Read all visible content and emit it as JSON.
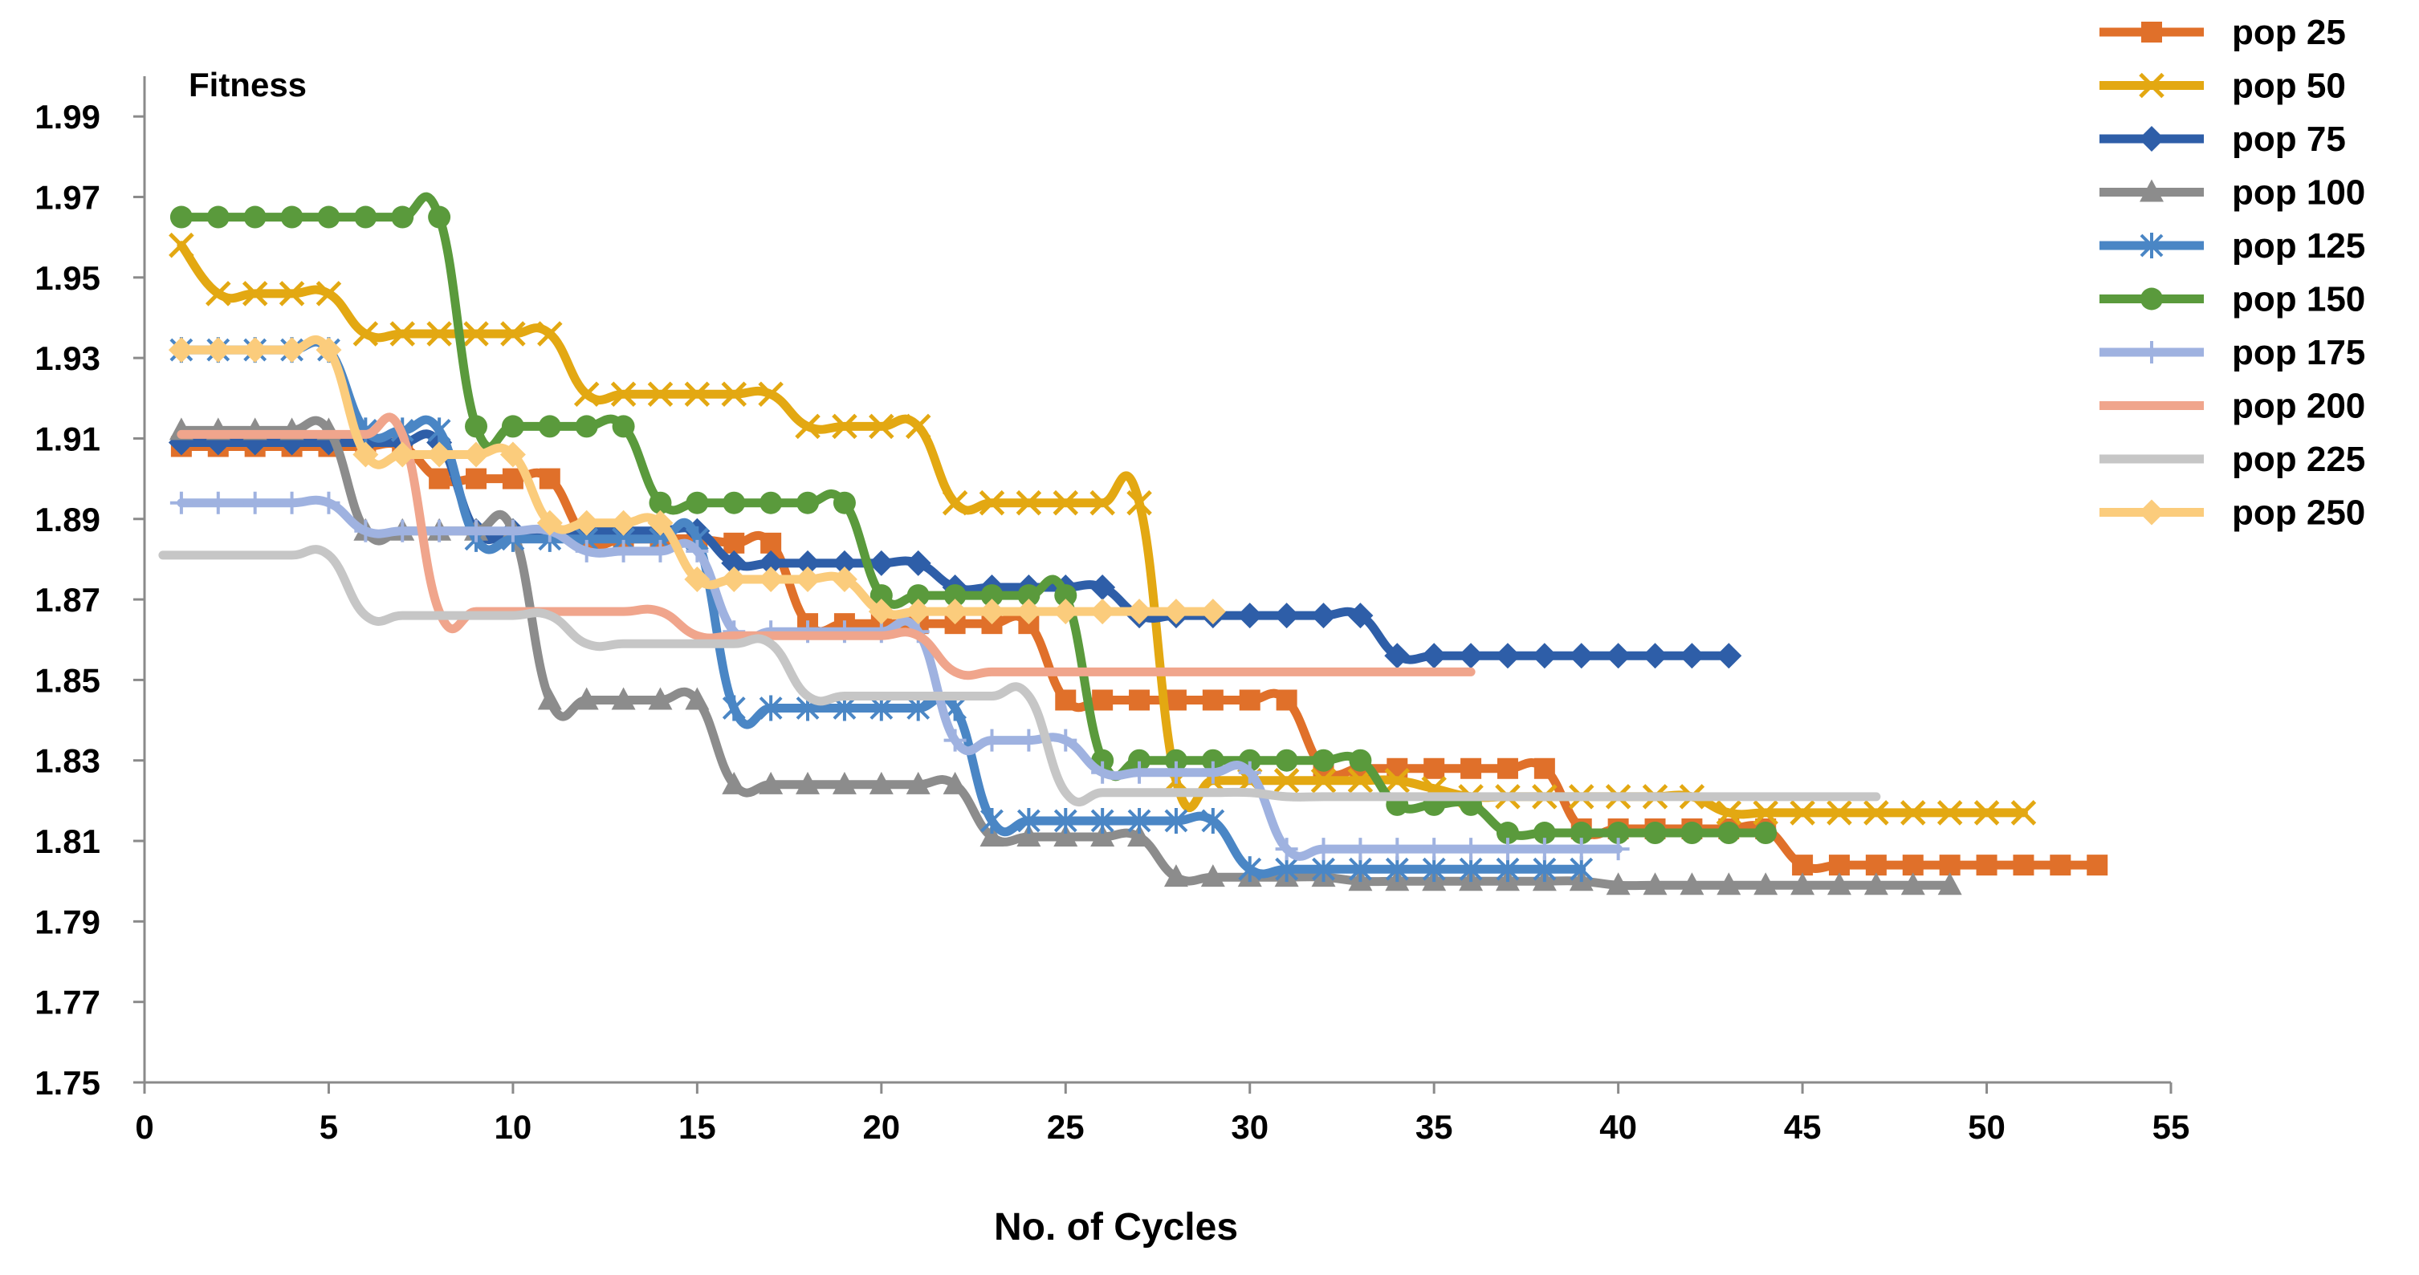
{
  "chart_data": {
    "type": "line",
    "title": "",
    "ylabel": "Fitness",
    "xlabel": "No. of Cycles",
    "xlim": [
      0,
      55
    ],
    "ylim": [
      1.75,
      2.0
    ],
    "xticks": [
      0,
      5,
      10,
      15,
      20,
      25,
      30,
      35,
      40,
      45,
      50,
      55
    ],
    "yticks": [
      1.75,
      1.77,
      1.79,
      1.81,
      1.83,
      1.85,
      1.87,
      1.89,
      1.91,
      1.93,
      1.95,
      1.97,
      1.99
    ],
    "xtick_labels": [
      "0",
      "5",
      "10",
      "15",
      "20",
      "25",
      "30",
      "35",
      "40",
      "45",
      "50",
      "55"
    ],
    "ytick_labels": [
      "1.75",
      "1.77",
      "1.79",
      "1.81",
      "1.83",
      "1.85",
      "1.87",
      "1.89",
      "1.91",
      "1.93",
      "1.95",
      "1.97",
      "1.99"
    ],
    "grid": false,
    "legend_position": "top-right",
    "series": [
      {
        "name": "pop 25",
        "color": "#e0702a",
        "marker": "square",
        "x": [
          1,
          2,
          3,
          4,
          5,
          6,
          7,
          8,
          9,
          10,
          11,
          12,
          13,
          14,
          15,
          16,
          17,
          18,
          19,
          20,
          21,
          22,
          23,
          24,
          25,
          26,
          27,
          28,
          29,
          30,
          31,
          32,
          33,
          34,
          35,
          36,
          37,
          38,
          39,
          40,
          41,
          42,
          43,
          44,
          45,
          46,
          47,
          48,
          49,
          50,
          51,
          52,
          53
        ],
        "y": [
          1.908,
          1.908,
          1.908,
          1.908,
          1.908,
          1.908,
          1.908,
          1.9,
          1.9,
          1.9,
          1.9,
          1.885,
          1.885,
          1.885,
          1.885,
          1.884,
          1.884,
          1.864,
          1.864,
          1.864,
          1.864,
          1.864,
          1.864,
          1.864,
          1.845,
          1.845,
          1.845,
          1.845,
          1.845,
          1.845,
          1.845,
          1.828,
          1.828,
          1.828,
          1.828,
          1.828,
          1.828,
          1.828,
          1.813,
          1.813,
          1.813,
          1.813,
          1.813,
          1.813,
          1.804,
          1.804,
          1.804,
          1.804,
          1.804,
          1.804,
          1.804,
          1.804,
          1.804
        ]
      },
      {
        "name": "pop 50",
        "color": "#e3a812",
        "marker": "x",
        "x": [
          1,
          2,
          3,
          4,
          5,
          6,
          7,
          8,
          9,
          10,
          11,
          12,
          13,
          14,
          15,
          16,
          17,
          18,
          19,
          20,
          21,
          22,
          23,
          24,
          25,
          26,
          27,
          28,
          29,
          30,
          31,
          32,
          33,
          34,
          35,
          36,
          37,
          38,
          39,
          40,
          41,
          42,
          43,
          44,
          45,
          46,
          47,
          48,
          49,
          50,
          51
        ],
        "y": [
          1.958,
          1.946,
          1.946,
          1.946,
          1.946,
          1.936,
          1.936,
          1.936,
          1.936,
          1.936,
          1.936,
          1.921,
          1.921,
          1.921,
          1.921,
          1.921,
          1.921,
          1.913,
          1.913,
          1.913,
          1.913,
          1.894,
          1.894,
          1.894,
          1.894,
          1.894,
          1.894,
          1.825,
          1.825,
          1.825,
          1.825,
          1.825,
          1.825,
          1.825,
          1.823,
          1.821,
          1.821,
          1.821,
          1.821,
          1.821,
          1.821,
          1.821,
          1.817,
          1.817,
          1.817,
          1.817,
          1.817,
          1.817,
          1.817,
          1.817,
          1.817
        ]
      },
      {
        "name": "pop 75",
        "color": "#2e5ea8",
        "marker": "diamond",
        "x": [
          1,
          2,
          3,
          4,
          5,
          6,
          7,
          8,
          9,
          10,
          11,
          12,
          13,
          14,
          15,
          16,
          17,
          18,
          19,
          20,
          21,
          22,
          23,
          24,
          25,
          26,
          27,
          28,
          29,
          30,
          31,
          32,
          33,
          34,
          35,
          36,
          37,
          38,
          39,
          40,
          41,
          42,
          43
        ],
        "y": [
          1.909,
          1.909,
          1.909,
          1.909,
          1.909,
          1.909,
          1.909,
          1.909,
          1.887,
          1.887,
          1.887,
          1.887,
          1.887,
          1.887,
          1.887,
          1.879,
          1.879,
          1.879,
          1.879,
          1.879,
          1.879,
          1.873,
          1.873,
          1.873,
          1.873,
          1.873,
          1.866,
          1.866,
          1.866,
          1.866,
          1.866,
          1.866,
          1.866,
          1.856,
          1.856,
          1.856,
          1.856,
          1.856,
          1.856,
          1.856,
          1.856,
          1.856,
          1.856
        ]
      },
      {
        "name": "pop 100",
        "color": "#8c8c8c",
        "marker": "triangle",
        "x": [
          1,
          2,
          3,
          4,
          5,
          6,
          7,
          8,
          9,
          10,
          11,
          12,
          13,
          14,
          15,
          16,
          17,
          18,
          19,
          20,
          21,
          22,
          23,
          24,
          25,
          26,
          27,
          28,
          29,
          30,
          31,
          32,
          33,
          34,
          35,
          36,
          37,
          38,
          39,
          40,
          41,
          42,
          43,
          44,
          45,
          46,
          47,
          48,
          49
        ],
        "y": [
          1.912,
          1.912,
          1.912,
          1.912,
          1.912,
          1.887,
          1.887,
          1.887,
          1.887,
          1.887,
          1.845,
          1.845,
          1.845,
          1.845,
          1.845,
          1.824,
          1.824,
          1.824,
          1.824,
          1.824,
          1.824,
          1.824,
          1.811,
          1.811,
          1.811,
          1.811,
          1.811,
          1.801,
          1.801,
          1.801,
          1.801,
          1.801,
          1.8,
          1.8,
          1.8,
          1.8,
          1.8,
          1.8,
          1.8,
          1.799,
          1.799,
          1.799,
          1.799,
          1.799,
          1.799,
          1.799,
          1.799,
          1.799,
          1.799
        ]
      },
      {
        "name": "pop 125",
        "color": "#4a86c5",
        "marker": "asterisk",
        "x": [
          1,
          2,
          3,
          4,
          5,
          6,
          7,
          8,
          9,
          10,
          11,
          12,
          13,
          14,
          15,
          16,
          17,
          18,
          19,
          20,
          21,
          22,
          23,
          24,
          25,
          26,
          27,
          28,
          29,
          30,
          31,
          32,
          33,
          34,
          35,
          36,
          37,
          38,
          39
        ],
        "y": [
          1.932,
          1.932,
          1.932,
          1.932,
          1.932,
          1.912,
          1.912,
          1.912,
          1.885,
          1.885,
          1.885,
          1.885,
          1.885,
          1.885,
          1.885,
          1.843,
          1.843,
          1.843,
          1.843,
          1.843,
          1.843,
          1.843,
          1.815,
          1.815,
          1.815,
          1.815,
          1.815,
          1.815,
          1.815,
          1.803,
          1.803,
          1.803,
          1.803,
          1.803,
          1.803,
          1.803,
          1.803,
          1.803,
          1.803
        ]
      },
      {
        "name": "pop 150",
        "color": "#5a9a3c",
        "marker": "circle",
        "x": [
          1,
          2,
          3,
          4,
          5,
          6,
          7,
          8,
          9,
          10,
          11,
          12,
          13,
          14,
          15,
          16,
          17,
          18,
          19,
          20,
          21,
          22,
          23,
          24,
          25,
          26,
          27,
          28,
          29,
          30,
          31,
          32,
          33,
          34,
          35,
          36,
          37,
          38,
          39,
          40,
          41,
          42,
          43,
          44
        ],
        "y": [
          1.965,
          1.965,
          1.965,
          1.965,
          1.965,
          1.965,
          1.965,
          1.965,
          1.913,
          1.913,
          1.913,
          1.913,
          1.913,
          1.894,
          1.894,
          1.894,
          1.894,
          1.894,
          1.894,
          1.871,
          1.871,
          1.871,
          1.871,
          1.871,
          1.871,
          1.83,
          1.83,
          1.83,
          1.83,
          1.83,
          1.83,
          1.83,
          1.83,
          1.819,
          1.819,
          1.819,
          1.812,
          1.812,
          1.812,
          1.812,
          1.812,
          1.812,
          1.812,
          1.812
        ]
      },
      {
        "name": "pop 175",
        "color": "#9fb2e0",
        "marker": "plus",
        "x": [
          1,
          2,
          3,
          4,
          5,
          6,
          7,
          8,
          9,
          10,
          11,
          12,
          13,
          14,
          15,
          16,
          17,
          18,
          19,
          20,
          21,
          22,
          23,
          24,
          25,
          26,
          27,
          28,
          29,
          30,
          31,
          32,
          33,
          34,
          35,
          36,
          37,
          38,
          39,
          40
        ],
        "y": [
          1.894,
          1.894,
          1.894,
          1.894,
          1.894,
          1.887,
          1.887,
          1.887,
          1.887,
          1.887,
          1.887,
          1.882,
          1.882,
          1.882,
          1.882,
          1.862,
          1.862,
          1.862,
          1.862,
          1.862,
          1.862,
          1.835,
          1.835,
          1.835,
          1.835,
          1.827,
          1.827,
          1.827,
          1.827,
          1.827,
          1.808,
          1.808,
          1.808,
          1.808,
          1.808,
          1.808,
          1.808,
          1.808,
          1.808,
          1.808
        ]
      },
      {
        "name": "pop 200",
        "color": "#f0a58c",
        "marker": "none",
        "x": [
          1,
          2,
          3,
          4,
          5,
          6,
          7,
          8,
          9,
          10,
          11,
          12,
          13,
          14,
          15,
          16,
          17,
          18,
          19,
          20,
          21,
          22,
          23,
          24,
          25,
          26,
          27,
          28,
          29,
          30,
          31,
          32,
          33,
          34,
          35,
          36
        ],
        "y": [
          1.911,
          1.911,
          1.911,
          1.911,
          1.911,
          1.911,
          1.911,
          1.867,
          1.867,
          1.867,
          1.867,
          1.867,
          1.867,
          1.867,
          1.861,
          1.861,
          1.861,
          1.861,
          1.861,
          1.861,
          1.861,
          1.852,
          1.852,
          1.852,
          1.852,
          1.852,
          1.852,
          1.852,
          1.852,
          1.852,
          1.852,
          1.852,
          1.852,
          1.852,
          1.852,
          1.852
        ]
      },
      {
        "name": "pop 225",
        "color": "#c6c6c6",
        "marker": "none",
        "x": [
          0.5,
          1,
          2,
          3,
          4,
          5,
          6,
          7,
          8,
          9,
          10,
          11,
          12,
          13,
          14,
          15,
          16,
          17,
          18,
          19,
          20,
          21,
          22,
          23,
          24,
          25,
          26,
          27,
          28,
          29,
          30,
          31,
          32,
          33,
          34,
          35,
          36,
          37,
          38,
          39,
          40,
          41,
          42,
          43,
          44,
          45,
          46,
          47
        ],
        "y": [
          1.881,
          1.881,
          1.881,
          1.881,
          1.881,
          1.881,
          1.866,
          1.866,
          1.866,
          1.866,
          1.866,
          1.866,
          1.859,
          1.859,
          1.859,
          1.859,
          1.859,
          1.859,
          1.846,
          1.846,
          1.846,
          1.846,
          1.846,
          1.846,
          1.846,
          1.822,
          1.822,
          1.822,
          1.822,
          1.822,
          1.822,
          1.821,
          1.821,
          1.821,
          1.821,
          1.821,
          1.821,
          1.821,
          1.821,
          1.821,
          1.821,
          1.821,
          1.821,
          1.821,
          1.821,
          1.821,
          1.821,
          1.821
        ]
      },
      {
        "name": "pop 250",
        "color": "#fbcc7c",
        "marker": "diamond",
        "x": [
          1,
          2,
          3,
          4,
          5,
          6,
          7,
          8,
          9,
          10,
          11,
          12,
          13,
          14,
          15,
          16,
          17,
          18,
          19,
          20,
          21,
          22,
          23,
          24,
          25,
          26,
          27,
          28,
          29
        ],
        "y": [
          1.932,
          1.932,
          1.932,
          1.932,
          1.932,
          1.906,
          1.906,
          1.906,
          1.906,
          1.906,
          1.889,
          1.889,
          1.889,
          1.889,
          1.875,
          1.875,
          1.875,
          1.875,
          1.875,
          1.867,
          1.867,
          1.867,
          1.867,
          1.867,
          1.867,
          1.867,
          1.867,
          1.867,
          1.867
        ]
      }
    ]
  }
}
